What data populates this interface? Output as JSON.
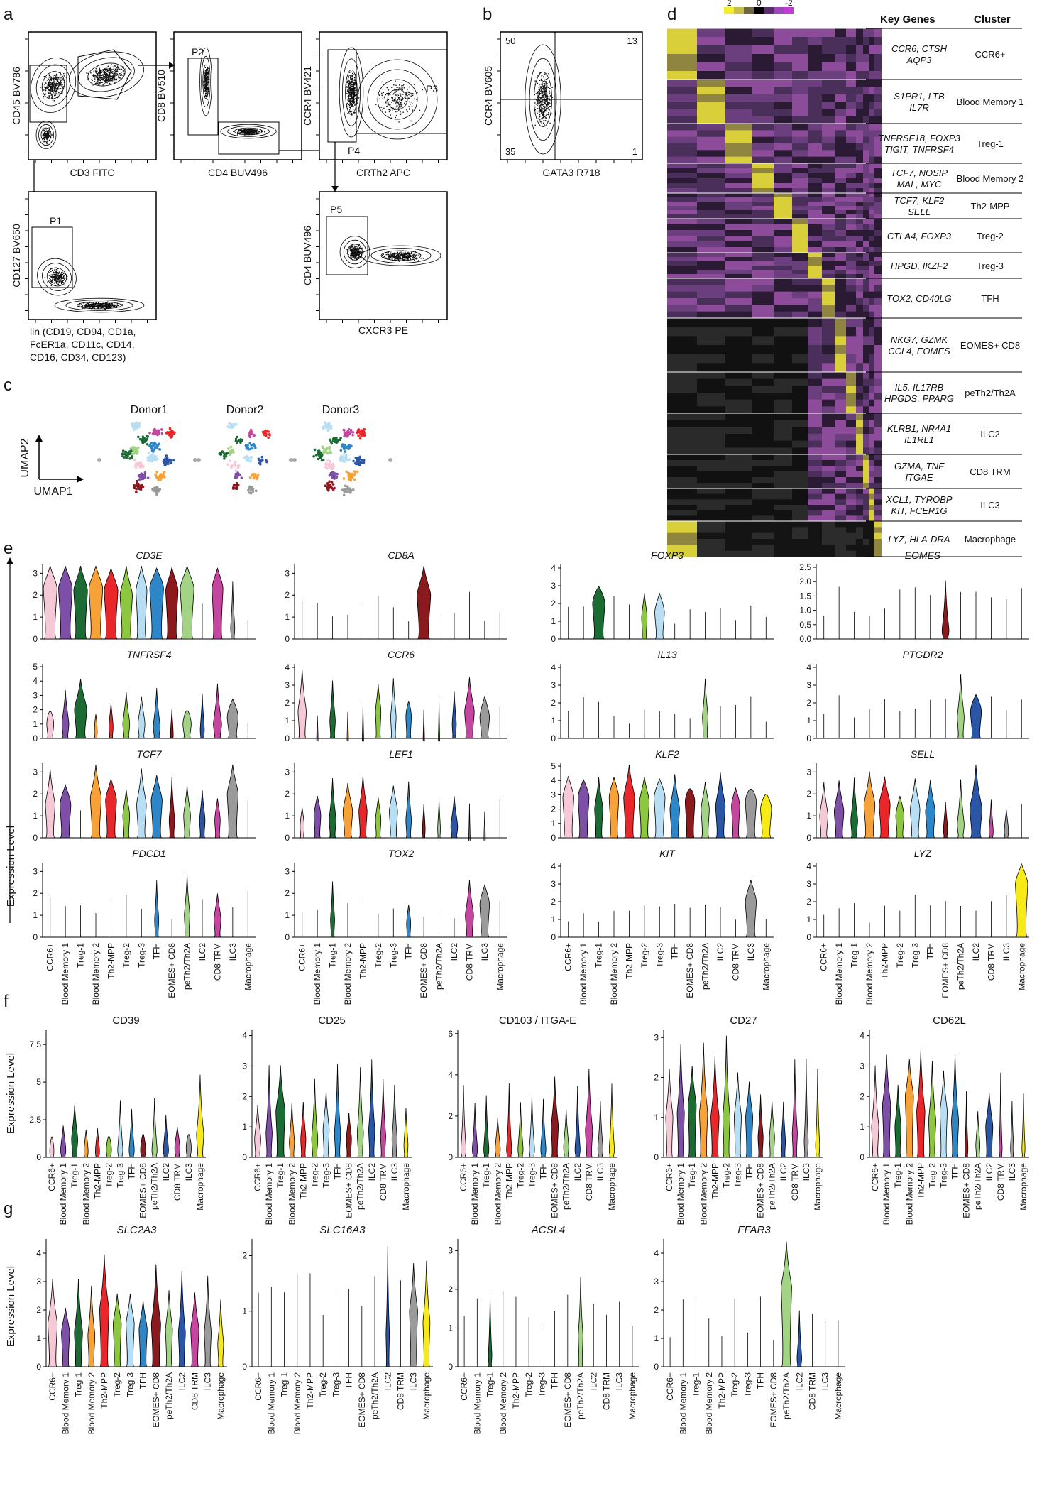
{
  "panel_labels": [
    "a",
    "b",
    "c",
    "d",
    "e",
    "f",
    "g"
  ],
  "panel_a": {
    "plots": [
      {
        "xlabel": "CD3 FITC",
        "ylabel": "CD45 BV786",
        "gates": []
      },
      {
        "xlabel": "CD4 BUV496",
        "ylabel": "CD8 BV510",
        "gates": [
          "P2"
        ]
      },
      {
        "xlabel": "CRTh2 APC",
        "ylabel": "CCR4 BV421",
        "gates": [
          "P3",
          "P4"
        ]
      },
      {
        "xlabel": "lin (CD19, CD94, CD1a,\nFcER1a, CD11c, CD14,\nCD16, CD34, CD123)",
        "ylabel": "CD127 BV650",
        "gates": [
          "P1"
        ]
      },
      {
        "xlabel": "CXCR3 PE",
        "ylabel": "CD4 BUV496",
        "gates": [
          "P5"
        ]
      }
    ]
  },
  "panel_b": {
    "xlabel": "GATA3 R718",
    "ylabel": "CCR4 BV605",
    "quadrants": [
      "50",
      "13",
      "35",
      "1"
    ]
  },
  "panel_c": {
    "donors": [
      "Donor1",
      "Donor2",
      "Donor3"
    ],
    "xlabel": "UMAP1",
    "ylabel": "UMAP2"
  },
  "panel_d": {
    "colorbar_ticks": [
      "2",
      "0",
      "-2"
    ],
    "header_genes": "Key Genes",
    "header_cluster": "Cluster",
    "rows": [
      {
        "genes": [
          "CCR6, CTSH",
          "AQP3"
        ],
        "cluster": "CCR6+"
      },
      {
        "genes": [
          "S1PR1, LTB",
          "IL7R"
        ],
        "cluster": "Blood Memory 1"
      },
      {
        "genes": [
          "TNFRSF18, FOXP3",
          "TIGIT, TNFRSF4"
        ],
        "cluster": "Treg-1"
      },
      {
        "genes": [
          "TCF7, NOSIP",
          "MAL, MYC"
        ],
        "cluster": "Blood Memory 2"
      },
      {
        "genes": [
          "TCF7, KLF2",
          "SELL"
        ],
        "cluster": "Th2-MPP"
      },
      {
        "genes": [
          "CTLA4, FOXP3"
        ],
        "cluster": "Treg-2"
      },
      {
        "genes": [
          "HPGD, IKZF2"
        ],
        "cluster": "Treg-3"
      },
      {
        "genes": [
          "TOX2, CD40LG"
        ],
        "cluster": "TFH"
      },
      {
        "genes": [
          "NKG7, GZMK",
          "CCL4, EOMES"
        ],
        "cluster": "EOMES+ CD8"
      },
      {
        "genes": [
          "IL5, IL17RB",
          "HPGDS, PPARG"
        ],
        "cluster": "peTh2/Th2A"
      },
      {
        "genes": [
          "KLRB1, NR4A1",
          "IL1RL1"
        ],
        "cluster": "ILC2"
      },
      {
        "genes": [
          "GZMA, TNF",
          "ITGAE"
        ],
        "cluster": "CD8 TRM"
      },
      {
        "genes": [
          "XCL1, TYROBP",
          "KIT, FCER1G"
        ],
        "cluster": "ILC3"
      },
      {
        "genes": [
          "LYZ, HLA-DRA"
        ],
        "cluster": "Macrophage"
      }
    ]
  },
  "clusters": [
    "CCR6+",
    "Blood Memory 1",
    "Treg-1",
    "Blood Memory 2",
    "Th2-MPP",
    "Treg-2",
    "Treg-3",
    "TFH",
    "EOMES+ CD8",
    "peTh2/Th2A",
    "ILC2",
    "CD8 TRM",
    "ILC3",
    "Macrophage"
  ],
  "colors": [
    "#f6c9d6",
    "#7e4fa6",
    "#1c6b34",
    "#f7a238",
    "#e9262a",
    "#8dc63f",
    "#b7def2",
    "#2d86c8",
    "#8b1a1f",
    "#a3d486",
    "#2b55a5",
    "#c4479f",
    "#9a9a9a",
    "#f7ea17"
  ],
  "panel_e": {
    "ylabel": "Expression Level",
    "genes": [
      {
        "name": "CD3E",
        "yticks": [
          "0",
          "1",
          "2",
          "3"
        ],
        "ymax": 3.4,
        "widths": [
          1,
          1,
          1,
          1,
          1,
          0.9,
          0.8,
          1,
          0.9,
          1,
          0.05,
          0.8,
          0.3,
          0.05
        ],
        "meds": [
          2.3,
          2.3,
          2.2,
          2.3,
          2.2,
          2.0,
          2.2,
          2.3,
          2.2,
          2.3,
          0.0,
          2.3,
          0.5,
          0.0
        ]
      },
      {
        "name": "CD8A",
        "yticks": [
          "0",
          "1",
          "2",
          "3"
        ],
        "ymax": 3.4,
        "widths": [
          0.05,
          0.05,
          0.05,
          0.05,
          0.05,
          0.05,
          0.05,
          0.05,
          1,
          0.05,
          0.05,
          0.05,
          0.05,
          0.05
        ],
        "meds": [
          0,
          0,
          0,
          0,
          0,
          0,
          0,
          0,
          2.0,
          0,
          0,
          0,
          0,
          0
        ]
      },
      {
        "name": "FOXP3",
        "yticks": [
          "0",
          "1",
          "2",
          "3",
          "4"
        ],
        "ymax": 4.2,
        "widths": [
          0.05,
          0.05,
          0.9,
          0.05,
          0.05,
          0.4,
          0.7,
          0.05,
          0.05,
          0.05,
          0.05,
          0.05,
          0.05,
          0.05
        ],
        "meds": [
          0,
          0,
          2.0,
          0,
          0,
          1.2,
          1.5,
          0,
          0,
          0,
          0,
          0,
          0,
          0
        ]
      },
      {
        "name": "EOMES",
        "yticks": [
          "0.0",
          "0.5",
          "1.0",
          "1.5",
          "2.0",
          "2.5"
        ],
        "ymax": 2.6,
        "widths": [
          0.05,
          0.05,
          0.05,
          0.05,
          0.05,
          0.05,
          0.05,
          0.05,
          0.5,
          0.05,
          0.05,
          0.05,
          0.05,
          0.05
        ],
        "meds": [
          0,
          0,
          0,
          0,
          0,
          0,
          0,
          0,
          0.3,
          0,
          0,
          0,
          0,
          0
        ]
      },
      {
        "name": "TNFRSF4",
        "yticks": [
          "0",
          "1",
          "2",
          "3",
          "4",
          "5"
        ],
        "ymax": 5.2,
        "widths": [
          0.5,
          0.5,
          0.9,
          0.2,
          0.3,
          0.5,
          0.5,
          0.5,
          0.2,
          0.6,
          0.3,
          0.6,
          0.8,
          0.05
        ],
        "meds": [
          1.0,
          1.0,
          2.0,
          0.5,
          0.8,
          1.0,
          1.0,
          0.8,
          0.3,
          1.0,
          0.6,
          1.0,
          1.5,
          0
        ]
      },
      {
        "name": "CCR6",
        "yticks": [
          "0",
          "1",
          "2",
          "3",
          "4"
        ],
        "ymax": 4.2,
        "widths": [
          0.6,
          0.1,
          0.4,
          0.1,
          0.1,
          0.4,
          0.4,
          0.4,
          0.1,
          0.1,
          0.3,
          0.7,
          0.7,
          0.05
        ],
        "meds": [
          1.5,
          0,
          1.0,
          0,
          0,
          1.5,
          1.2,
          1.2,
          0,
          0,
          0.8,
          1.5,
          1.2,
          0
        ]
      },
      {
        "name": "IL13",
        "yticks": [
          "0",
          "1",
          "2",
          "3",
          "4"
        ],
        "ymax": 4.2,
        "widths": [
          0.05,
          0.05,
          0.05,
          0.05,
          0.05,
          0.05,
          0.05,
          0.05,
          0.05,
          0.4,
          0.05,
          0.05,
          0.05,
          0.05
        ],
        "meds": [
          0,
          0,
          0,
          0,
          0,
          0,
          0,
          0,
          0,
          1.2,
          0,
          0,
          0,
          0
        ]
      },
      {
        "name": "PTGDR2",
        "yticks": [
          "0",
          "1",
          "2",
          "3",
          "4"
        ],
        "ymax": 4.2,
        "widths": [
          0.05,
          0.05,
          0.05,
          0.05,
          0.05,
          0.05,
          0.05,
          0.05,
          0.05,
          0.5,
          0.8,
          0.05,
          0.05,
          0.05
        ],
        "meds": [
          0,
          0,
          0,
          0,
          0,
          0,
          0,
          0,
          0,
          1.2,
          1.5,
          0,
          0,
          0
        ]
      },
      {
        "name": "TCF7",
        "yticks": [
          "0",
          "1",
          "2",
          "3"
        ],
        "ymax": 3.4,
        "widths": [
          0.7,
          0.8,
          0.05,
          0.8,
          0.8,
          0.5,
          0.7,
          0.8,
          0.4,
          0.5,
          0.4,
          0.4,
          0.8,
          0.05
        ],
        "meds": [
          1.5,
          1.5,
          0,
          1.8,
          1.7,
          1.0,
          1.5,
          1.7,
          0.8,
          1.0,
          0.8,
          0.8,
          2.0,
          0
        ]
      },
      {
        "name": "LEF1",
        "yticks": [
          "0",
          "1",
          "2",
          "3"
        ],
        "ymax": 3.4,
        "widths": [
          0.3,
          0.5,
          0.5,
          0.7,
          0.6,
          0.4,
          0.6,
          0.4,
          0.2,
          0.2,
          0.5,
          0.1,
          0.1,
          0.05
        ],
        "meds": [
          0.5,
          1.0,
          0.8,
          1.2,
          1.2,
          0.8,
          1.2,
          0.8,
          0.4,
          0.4,
          0.5,
          0,
          0,
          0
        ]
      },
      {
        "name": "KLF2",
        "yticks": [
          "0",
          "1",
          "2",
          "3",
          "4",
          "5"
        ],
        "ymax": 5.2,
        "widths": [
          0.8,
          0.8,
          0.6,
          0.7,
          0.8,
          0.7,
          0.8,
          0.7,
          0.7,
          0.6,
          0.7,
          0.6,
          0.8,
          0.8
        ],
        "meds": [
          2.8,
          2.8,
          2.0,
          2.8,
          2.8,
          2.5,
          2.8,
          2.0,
          2.5,
          2.0,
          2.2,
          2.2,
          2.5,
          2.0
        ]
      },
      {
        "name": "SELL",
        "yticks": [
          "0",
          "1",
          "2",
          "3"
        ],
        "ymax": 3.4,
        "widths": [
          0.6,
          0.7,
          0.5,
          0.8,
          0.8,
          0.6,
          0.7,
          0.7,
          0.3,
          0.5,
          0.9,
          0.3,
          0.3,
          0.05
        ],
        "meds": [
          1.0,
          1.2,
          0.8,
          1.5,
          1.5,
          1.0,
          1.3,
          1.2,
          0.4,
          0.6,
          1.3,
          0.3,
          0.3,
          0
        ]
      },
      {
        "name": "PDCD1",
        "yticks": [
          "0",
          "1",
          "2",
          "3"
        ],
        "ymax": 3.4,
        "widths": [
          0.05,
          0.05,
          0.05,
          0.05,
          0.05,
          0.05,
          0.05,
          0.3,
          0.05,
          0.4,
          0.05,
          0.5,
          0.05,
          0.05
        ],
        "meds": [
          0,
          0,
          0,
          0,
          0,
          0,
          0,
          0.8,
          0,
          1.0,
          0,
          0.8,
          0,
          0
        ]
      },
      {
        "name": "TOX2",
        "yticks": [
          "0",
          "1",
          "2",
          "3"
        ],
        "ymax": 3.4,
        "widths": [
          0.05,
          0.05,
          0.3,
          0.05,
          0.05,
          0.05,
          0.05,
          0.3,
          0.05,
          0.05,
          0.05,
          0.6,
          0.7,
          0.05
        ],
        "meds": [
          0,
          0,
          0.8,
          0,
          0,
          0,
          0,
          0.6,
          0,
          0,
          0,
          1.0,
          1.5,
          0
        ]
      },
      {
        "name": "KIT",
        "yticks": [
          "0",
          "1",
          "2",
          "3",
          "4"
        ],
        "ymax": 4.2,
        "widths": [
          0.05,
          0.05,
          0.05,
          0.05,
          0.05,
          0.05,
          0.05,
          0.05,
          0.05,
          0.05,
          0.05,
          0.05,
          0.8,
          0.05
        ],
        "meds": [
          0,
          0,
          0,
          0,
          0,
          0,
          0,
          0,
          0,
          0,
          0,
          0,
          2.0,
          0
        ]
      },
      {
        "name": "LYZ",
        "yticks": [
          "0",
          "1",
          "2",
          "3",
          "4"
        ],
        "ymax": 4.2,
        "widths": [
          0.05,
          0.05,
          0.05,
          0.05,
          0.05,
          0.05,
          0.05,
          0.05,
          0.05,
          0.05,
          0.05,
          0.05,
          0.05,
          0.9
        ],
        "meds": [
          0,
          0,
          0,
          0,
          0,
          0,
          0,
          0,
          0,
          0,
          0,
          0,
          0,
          3.0
        ]
      }
    ]
  },
  "panel_f": {
    "ylabel": "Expression Level",
    "markers": [
      {
        "name": "CD39",
        "yticks": [
          "0",
          "2.5",
          "5",
          "7.5"
        ],
        "ymax": 8.5,
        "widths": [
          0.4,
          0.5,
          0.6,
          0.4,
          0.4,
          0.5,
          0.5,
          0.5,
          0.5,
          0.5,
          0.5,
          0.5,
          0.5,
          0.7
        ],
        "meds": [
          0.4,
          0.5,
          1.2,
          0.4,
          0.4,
          0.5,
          0.5,
          0.5,
          0.5,
          0.5,
          0.5,
          0.6,
          0.6,
          1.5
        ]
      },
      {
        "name": "CD25",
        "yticks": [
          "0",
          "1",
          "2",
          "3",
          "4"
        ],
        "ymax": 4.2,
        "widths": [
          0.6,
          0.6,
          0.9,
          0.5,
          0.5,
          0.6,
          0.6,
          0.6,
          0.5,
          0.6,
          0.6,
          0.5,
          0.5,
          0.4
        ],
        "meds": [
          0.6,
          0.8,
          1.5,
          0.5,
          0.6,
          0.6,
          0.9,
          0.8,
          0.6,
          0.8,
          0.9,
          0.7,
          0.6,
          0.4
        ]
      },
      {
        "name": "CD103 / ITGA-E",
        "yticks": [
          "0",
          "2",
          "4",
          "6"
        ],
        "ymax": 6.2,
        "widths": [
          0.5,
          0.5,
          0.5,
          0.5,
          0.5,
          0.5,
          0.5,
          0.5,
          0.7,
          0.5,
          0.5,
          0.7,
          0.5,
          0.5
        ],
        "meds": [
          0.4,
          0.4,
          0.4,
          0.4,
          0.4,
          0.4,
          0.4,
          0.4,
          1.5,
          0.5,
          0.4,
          1.3,
          0.4,
          0.4
        ]
      },
      {
        "name": "CD27",
        "yticks": [
          "0",
          "1",
          "2",
          "3"
        ],
        "ymax": 3.2,
        "widths": [
          0.7,
          0.7,
          0.8,
          0.8,
          0.8,
          0.7,
          0.7,
          0.7,
          0.5,
          0.5,
          0.4,
          0.5,
          0.4,
          0.4
        ],
        "meds": [
          1.0,
          1.1,
          1.3,
          1.1,
          1.0,
          1.0,
          1.0,
          1.0,
          0.5,
          0.5,
          0.4,
          0.6,
          0.4,
          0.3
        ]
      },
      {
        "name": "CD62L",
        "yticks": [
          "0",
          "1",
          "2",
          "3",
          "4"
        ],
        "ymax": 4.2,
        "widths": [
          0.7,
          0.8,
          0.6,
          0.8,
          0.8,
          0.7,
          0.7,
          0.7,
          0.3,
          0.4,
          0.7,
          0.3,
          0.3,
          0.3
        ],
        "meds": [
          1.0,
          1.7,
          1.0,
          2.0,
          1.5,
          1.2,
          1.5,
          1.2,
          0.3,
          0.4,
          1.0,
          0.3,
          0.3,
          0.3
        ]
      }
    ]
  },
  "panel_g": {
    "ylabel": "Expression Level",
    "genes": [
      {
        "name": "SLC2A3",
        "yticks": [
          "0",
          "1",
          "2",
          "3",
          "4"
        ],
        "ymax": 4.5,
        "widths": [
          0.8,
          0.7,
          0.7,
          0.6,
          0.8,
          0.7,
          0.7,
          0.7,
          0.8,
          0.6,
          0.6,
          0.7,
          0.6,
          0.5
        ],
        "meds": [
          1.5,
          1.2,
          1.2,
          1.1,
          2.0,
          1.5,
          1.5,
          1.3,
          1.5,
          1.3,
          1.2,
          1.3,
          1.2,
          0.8
        ]
      },
      {
        "name": "SLC16A3",
        "yticks": [
          "0",
          "1",
          "2"
        ],
        "ymax": 2.3,
        "widths": [
          0.05,
          0.05,
          0.05,
          0.05,
          0.05,
          0.05,
          0.05,
          0.05,
          0.05,
          0.05,
          0.3,
          0.05,
          0.7,
          0.6
        ],
        "meds": [
          0,
          0,
          0,
          0,
          0,
          0,
          0,
          0,
          0,
          0,
          0.6,
          0,
          1.0,
          0.8
        ]
      },
      {
        "name": "ACSL4",
        "yticks": [
          "0",
          "1",
          "2",
          "3"
        ],
        "ymax": 3.3,
        "widths": [
          0.05,
          0.05,
          0.3,
          0.05,
          0.05,
          0.05,
          0.05,
          0.05,
          0.05,
          0.4,
          0.05,
          0.05,
          0.05,
          0.05
        ],
        "meds": [
          0,
          0,
          0.3,
          0,
          0,
          0,
          0,
          0,
          0,
          0.8,
          0,
          0,
          0,
          0
        ]
      },
      {
        "name": "FFAR3",
        "yticks": [
          "0",
          "1",
          "2",
          "3",
          "4"
        ],
        "ymax": 4.5,
        "widths": [
          0.05,
          0.05,
          0.05,
          0.05,
          0.05,
          0.05,
          0.05,
          0.05,
          0.05,
          0.9,
          0.4,
          0.05,
          0.05,
          0.05
        ],
        "meds": [
          0,
          0,
          0,
          0,
          0,
          0,
          0,
          0,
          0,
          2.8,
          0.3,
          0,
          0,
          0
        ]
      }
    ]
  }
}
